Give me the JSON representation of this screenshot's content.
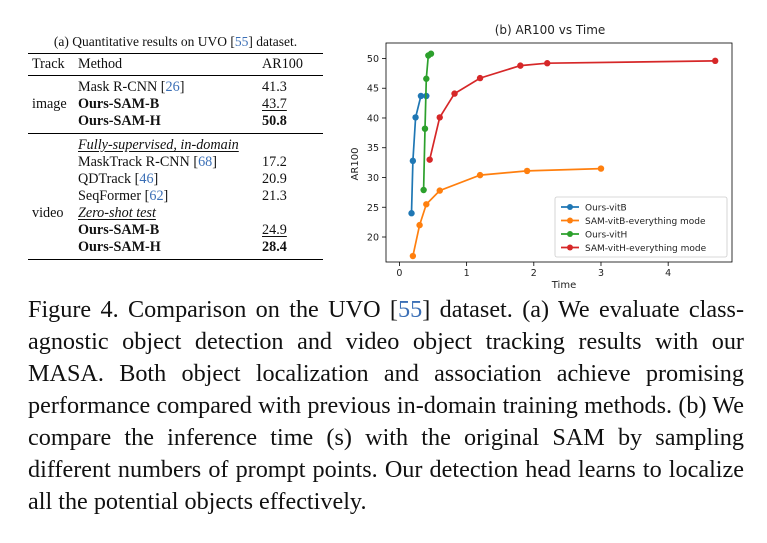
{
  "table": {
    "caption_prefix": "(a) Quantitative results on UVO [",
    "caption_cite": "55",
    "caption_suffix": "] dataset.",
    "headers": {
      "track": "Track",
      "method": "Method",
      "ar": "AR100"
    },
    "image_group": {
      "label": "image",
      "rows": [
        {
          "method": "Mask R-CNN",
          "cite": "26",
          "ar": "41.3",
          "bold": false,
          "underline": false
        },
        {
          "method": "Ours-SAM-B",
          "cite": "",
          "ar": "43.7",
          "bold": true,
          "underline": true
        },
        {
          "method": "Ours-SAM-H",
          "cite": "",
          "ar": "50.8",
          "bold": true,
          "underline": false
        }
      ]
    },
    "video_group": {
      "label": "video",
      "sub1": "Fully-supervised, in-domain",
      "rows1": [
        {
          "method": "MaskTrack R-CNN",
          "cite": "68",
          "ar": "17.2"
        },
        {
          "method": "QDTrack",
          "cite": "46",
          "ar": "20.9"
        },
        {
          "method": "SeqFormer",
          "cite": "62",
          "ar": "21.3"
        }
      ],
      "sub2": "Zero-shot test",
      "rows2": [
        {
          "method": "Ours-SAM-B",
          "ar": "24.9",
          "underline": true
        },
        {
          "method": "Ours-SAM-H",
          "ar": "28.4",
          "underline": false
        }
      ]
    }
  },
  "chart_data": {
    "type": "line",
    "title": "(b) AR100 vs Time",
    "xlabel": "Time",
    "ylabel": "AR100",
    "xlim": [
      -0.2,
      4.95
    ],
    "ylim": [
      15.8,
      52.6
    ],
    "xticks": [
      0,
      1,
      2,
      3,
      4
    ],
    "yticks": [
      20,
      25,
      30,
      35,
      40,
      45,
      50
    ],
    "grid": false,
    "legend_position": "lower-right",
    "series": [
      {
        "name": "Ours-vitB",
        "color": "#1f77b4",
        "x": [
          0.18,
          0.2,
          0.24,
          0.32,
          0.4
        ],
        "y": [
          24.0,
          32.8,
          40.1,
          43.7,
          43.7
        ]
      },
      {
        "name": "SAM-vitB-everything mode",
        "color": "#ff7f0e",
        "x": [
          0.2,
          0.3,
          0.4,
          0.6,
          1.2,
          1.9,
          3.0
        ],
        "y": [
          16.8,
          22.0,
          25.5,
          27.8,
          30.4,
          31.1,
          31.5
        ]
      },
      {
        "name": "Ours-vitH",
        "color": "#2ca02c",
        "x": [
          0.36,
          0.38,
          0.4,
          0.43,
          0.47
        ],
        "y": [
          27.9,
          38.2,
          46.6,
          50.5,
          50.8
        ]
      },
      {
        "name": "SAM-vitH-everything mode",
        "color": "#d62728",
        "x": [
          0.45,
          0.6,
          0.82,
          1.2,
          1.8,
          2.2,
          4.7
        ],
        "y": [
          33.0,
          40.1,
          44.1,
          46.7,
          48.8,
          49.2,
          49.6
        ]
      }
    ]
  },
  "figure_caption": {
    "part1": "Figure 4. Comparison on the UVO [",
    "cite": "55",
    "part2": "] dataset. (a) We evaluate class-agnostic object detection and video object tracking results with our MASA. Both object localization and association achieve promising performance compared with previous in-domain training methods. (b) We compare the inference time (s) with the original SAM by sampling different numbers of prompt points. Our detection head learns to localize all the potential objects effectively."
  }
}
